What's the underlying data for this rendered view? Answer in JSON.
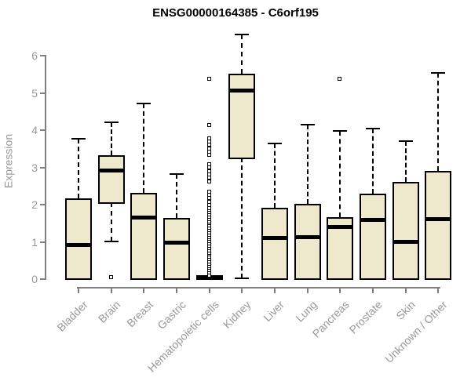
{
  "title": "ENSG00000164385 - C6orf195",
  "chart_data": {
    "type": "boxplot",
    "title": "ENSG00000164385 - C6orf195",
    "xlabel": "",
    "ylabel": "Expression",
    "ylim": [
      0,
      6.6
    ],
    "yticks": [
      0,
      1,
      2,
      3,
      4,
      5,
      6
    ],
    "grid": false,
    "legend": "none",
    "colors": {
      "box_fill": "#EEE8CD",
      "box_border": "#000000",
      "median": "#000000",
      "axis": "#808080",
      "tick_text": "#999999",
      "title_text": "#000000",
      "background": "#FFFFFF"
    },
    "categories": [
      "Bladder",
      "Brain",
      "Breast",
      "Gastric",
      "Hematopoietic cells",
      "Kidney",
      "Liver",
      "Lung",
      "Pancreas",
      "Prostate",
      "Skin",
      "Unknown / Other"
    ],
    "series": [
      {
        "name": "Bladder",
        "low": 0,
        "q1": 0,
        "median": 0.9,
        "q3": 2.15,
        "high": 3.75,
        "outliers": []
      },
      {
        "name": "Brain",
        "low": 1.0,
        "q1": 2.05,
        "median": 2.9,
        "q3": 3.3,
        "high": 4.2,
        "outliers": [
          0.02
        ]
      },
      {
        "name": "Breast",
        "low": 0,
        "q1": 0,
        "median": 1.65,
        "q3": 2.3,
        "high": 4.7,
        "outliers": []
      },
      {
        "name": "Gastric",
        "low": 0,
        "q1": 0,
        "median": 0.97,
        "q3": 1.63,
        "high": 2.8,
        "outliers": []
      },
      {
        "name": "Hematopoietic cells",
        "low": 0,
        "q1": 0,
        "median": 0.04,
        "q3": 0.08,
        "high": 0.08,
        "outliers": [
          5.35,
          4.1,
          3.75,
          3.66,
          3.57,
          3.48,
          3.39,
          3.3,
          3.05,
          2.96,
          2.87,
          2.78,
          2.69,
          2.6,
          2.32,
          2.23,
          2.14,
          2.05,
          1.96,
          1.87,
          1.8,
          1.74,
          1.68,
          1.62,
          1.56,
          1.5,
          1.44,
          1.38,
          1.32,
          1.26,
          1.2,
          1.14,
          1.08,
          1.02,
          0.96,
          0.9,
          0.84,
          0.78,
          0.72,
          0.66,
          0.6,
          0.54,
          0.48,
          0.42,
          0.36,
          0.3,
          0.24,
          0.18,
          0.12,
          0.07
        ]
      },
      {
        "name": "Kidney",
        "low": 0,
        "q1": 3.25,
        "median": 5.05,
        "q3": 5.5,
        "high": 6.55,
        "outliers": []
      },
      {
        "name": "Liver",
        "low": 0,
        "q1": 0,
        "median": 1.1,
        "q3": 1.9,
        "high": 3.62,
        "outliers": []
      },
      {
        "name": "Lung",
        "low": 0,
        "q1": 0,
        "median": 1.12,
        "q3": 2.0,
        "high": 4.12,
        "outliers": []
      },
      {
        "name": "Pancreas",
        "low": 0,
        "q1": 0,
        "median": 1.38,
        "q3": 1.65,
        "high": 3.95,
        "outliers": [
          5.35
        ]
      },
      {
        "name": "Prostate",
        "low": 0,
        "q1": 0,
        "median": 1.58,
        "q3": 2.28,
        "high": 4.03,
        "outliers": []
      },
      {
        "name": "Skin",
        "low": 0,
        "q1": 0,
        "median": 1.0,
        "q3": 2.6,
        "high": 3.68,
        "outliers": []
      },
      {
        "name": "Unknown / Other",
        "low": 0,
        "q1": 0,
        "median": 1.6,
        "q3": 2.88,
        "high": 5.52,
        "outliers": []
      }
    ]
  }
}
